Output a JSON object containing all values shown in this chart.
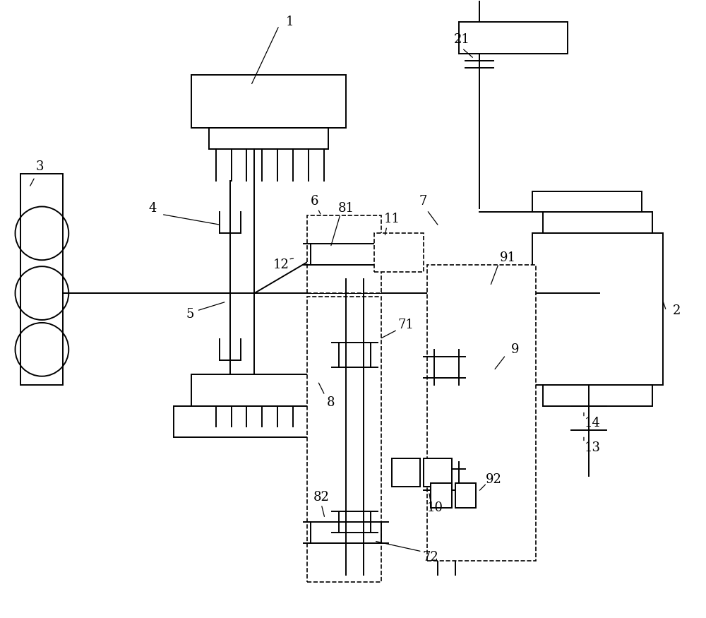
{
  "bg_color": "#ffffff",
  "line_color": "#000000",
  "lw": 1.4,
  "fig_width": 10.0,
  "fig_height": 8.75
}
